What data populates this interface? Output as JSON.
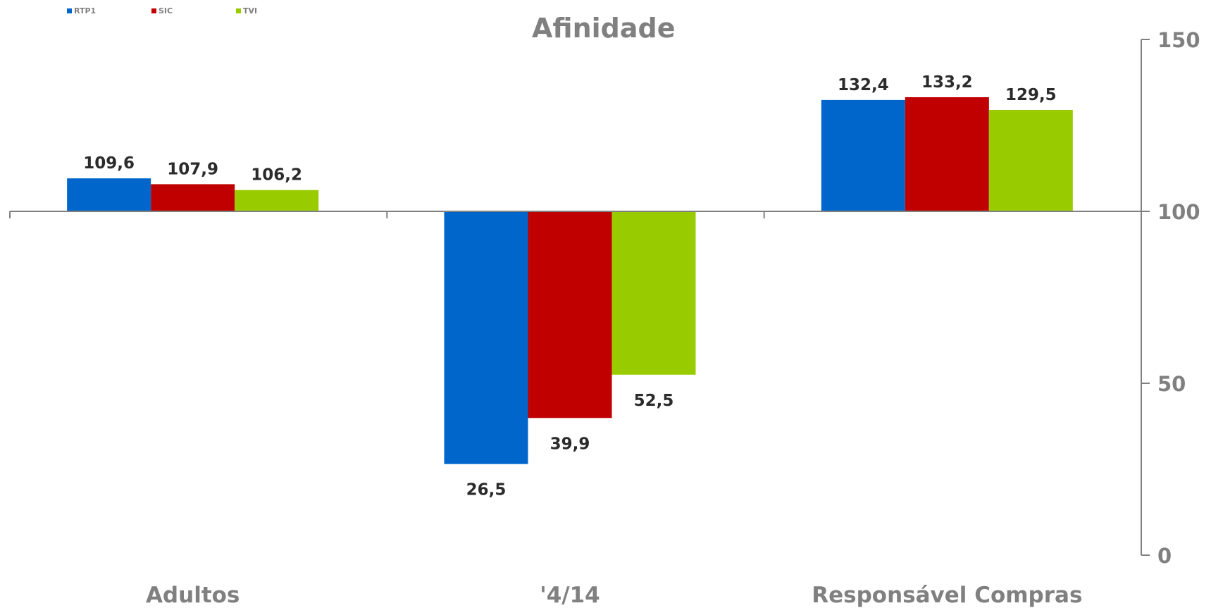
{
  "colors": {
    "RTP1": "#0066cc",
    "SIC": "#c00000",
    "TVI": "#99cc00",
    "axis": "#808080",
    "text": "#2b2b2b"
  },
  "chart_data": {
    "type": "bar",
    "title": "Afinidade",
    "categories": [
      "Adultos",
      "'4/14",
      "Responsável Compras"
    ],
    "series": [
      {
        "name": "RTP1",
        "values": [
          109.6,
          26.5,
          132.4
        ],
        "labels": [
          "109,6",
          "26,5",
          "132,4"
        ]
      },
      {
        "name": "SIC",
        "values": [
          107.9,
          39.9,
          133.2
        ],
        "labels": [
          "107,9",
          "39,9",
          "133,2"
        ]
      },
      {
        "name": "TVI",
        "values": [
          106.2,
          52.5,
          129.5
        ],
        "labels": [
          "106,2",
          "52,5",
          "129,5"
        ]
      }
    ],
    "baseline": 100,
    "ylim": [
      0,
      150
    ],
    "yticks": [
      0,
      50,
      100,
      150
    ],
    "ytick_labels": [
      "0",
      "50",
      "100",
      "150"
    ],
    "y_axis_side": "right",
    "legend_position": "top-left",
    "grid": false
  }
}
